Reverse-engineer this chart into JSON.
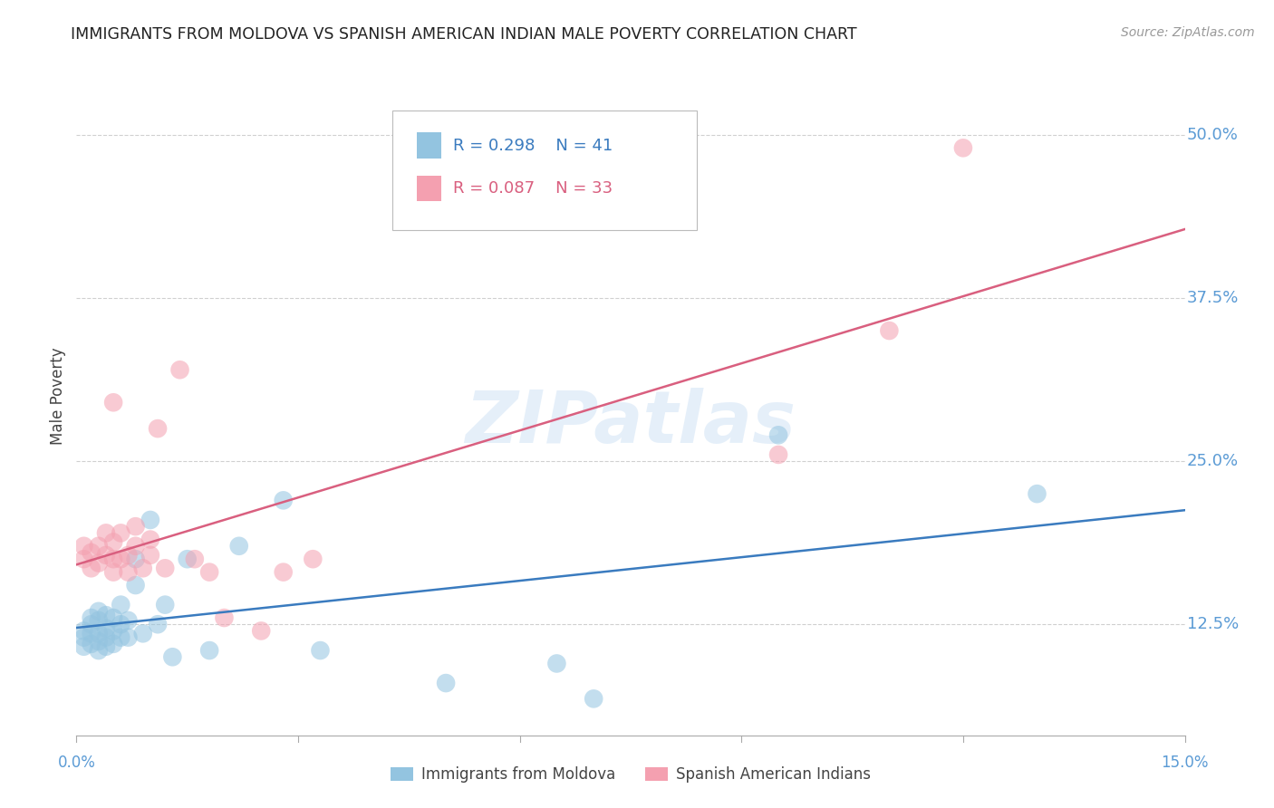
{
  "title": "IMMIGRANTS FROM MOLDOVA VS SPANISH AMERICAN INDIAN MALE POVERTY CORRELATION CHART",
  "source": "Source: ZipAtlas.com",
  "ylabel": "Male Poverty",
  "ytick_labels": [
    "12.5%",
    "25.0%",
    "37.5%",
    "50.0%"
  ],
  "ytick_values": [
    0.125,
    0.25,
    0.375,
    0.5
  ],
  "xmin": 0.0,
  "xmax": 0.15,
  "ymin": 0.04,
  "ymax": 0.56,
  "watermark": "ZIPatlas",
  "series": [
    {
      "name": "Immigrants from Moldova",
      "R": 0.298,
      "N": 41,
      "color": "#93c4e0",
      "line_color": "#3a7bbf",
      "x": [
        0.001,
        0.001,
        0.001,
        0.002,
        0.002,
        0.002,
        0.002,
        0.003,
        0.003,
        0.003,
        0.003,
        0.003,
        0.004,
        0.004,
        0.004,
        0.004,
        0.005,
        0.005,
        0.005,
        0.006,
        0.006,
        0.006,
        0.007,
        0.007,
        0.008,
        0.008,
        0.009,
        0.01,
        0.011,
        0.012,
        0.013,
        0.015,
        0.018,
        0.022,
        0.028,
        0.033,
        0.05,
        0.065,
        0.07,
        0.095,
        0.13
      ],
      "y": [
        0.115,
        0.12,
        0.108,
        0.11,
        0.118,
        0.125,
        0.13,
        0.105,
        0.112,
        0.118,
        0.128,
        0.135,
        0.108,
        0.115,
        0.122,
        0.132,
        0.11,
        0.12,
        0.13,
        0.115,
        0.125,
        0.14,
        0.115,
        0.128,
        0.155,
        0.175,
        0.118,
        0.205,
        0.125,
        0.14,
        0.1,
        0.175,
        0.105,
        0.185,
        0.22,
        0.105,
        0.08,
        0.095,
        0.068,
        0.27,
        0.225
      ]
    },
    {
      "name": "Spanish American Indians",
      "R": 0.087,
      "N": 33,
      "color": "#f4a0b0",
      "line_color": "#d95f7f",
      "x": [
        0.001,
        0.001,
        0.002,
        0.002,
        0.003,
        0.003,
        0.004,
        0.004,
        0.005,
        0.005,
        0.005,
        0.006,
        0.006,
        0.007,
        0.007,
        0.008,
        0.008,
        0.009,
        0.01,
        0.01,
        0.011,
        0.012,
        0.014,
        0.016,
        0.018,
        0.02,
        0.025,
        0.028,
        0.032,
        0.095,
        0.11,
        0.12,
        0.005
      ],
      "y": [
        0.175,
        0.185,
        0.168,
        0.18,
        0.172,
        0.185,
        0.178,
        0.195,
        0.165,
        0.175,
        0.188,
        0.175,
        0.195,
        0.165,
        0.178,
        0.185,
        0.2,
        0.168,
        0.178,
        0.19,
        0.275,
        0.168,
        0.32,
        0.175,
        0.165,
        0.13,
        0.12,
        0.165,
        0.175,
        0.255,
        0.35,
        0.49,
        0.295
      ]
    }
  ],
  "background_color": "#ffffff",
  "grid_color": "#d0d0d0",
  "title_color": "#222222",
  "tick_label_color": "#5b9bd5",
  "source_color": "#999999"
}
